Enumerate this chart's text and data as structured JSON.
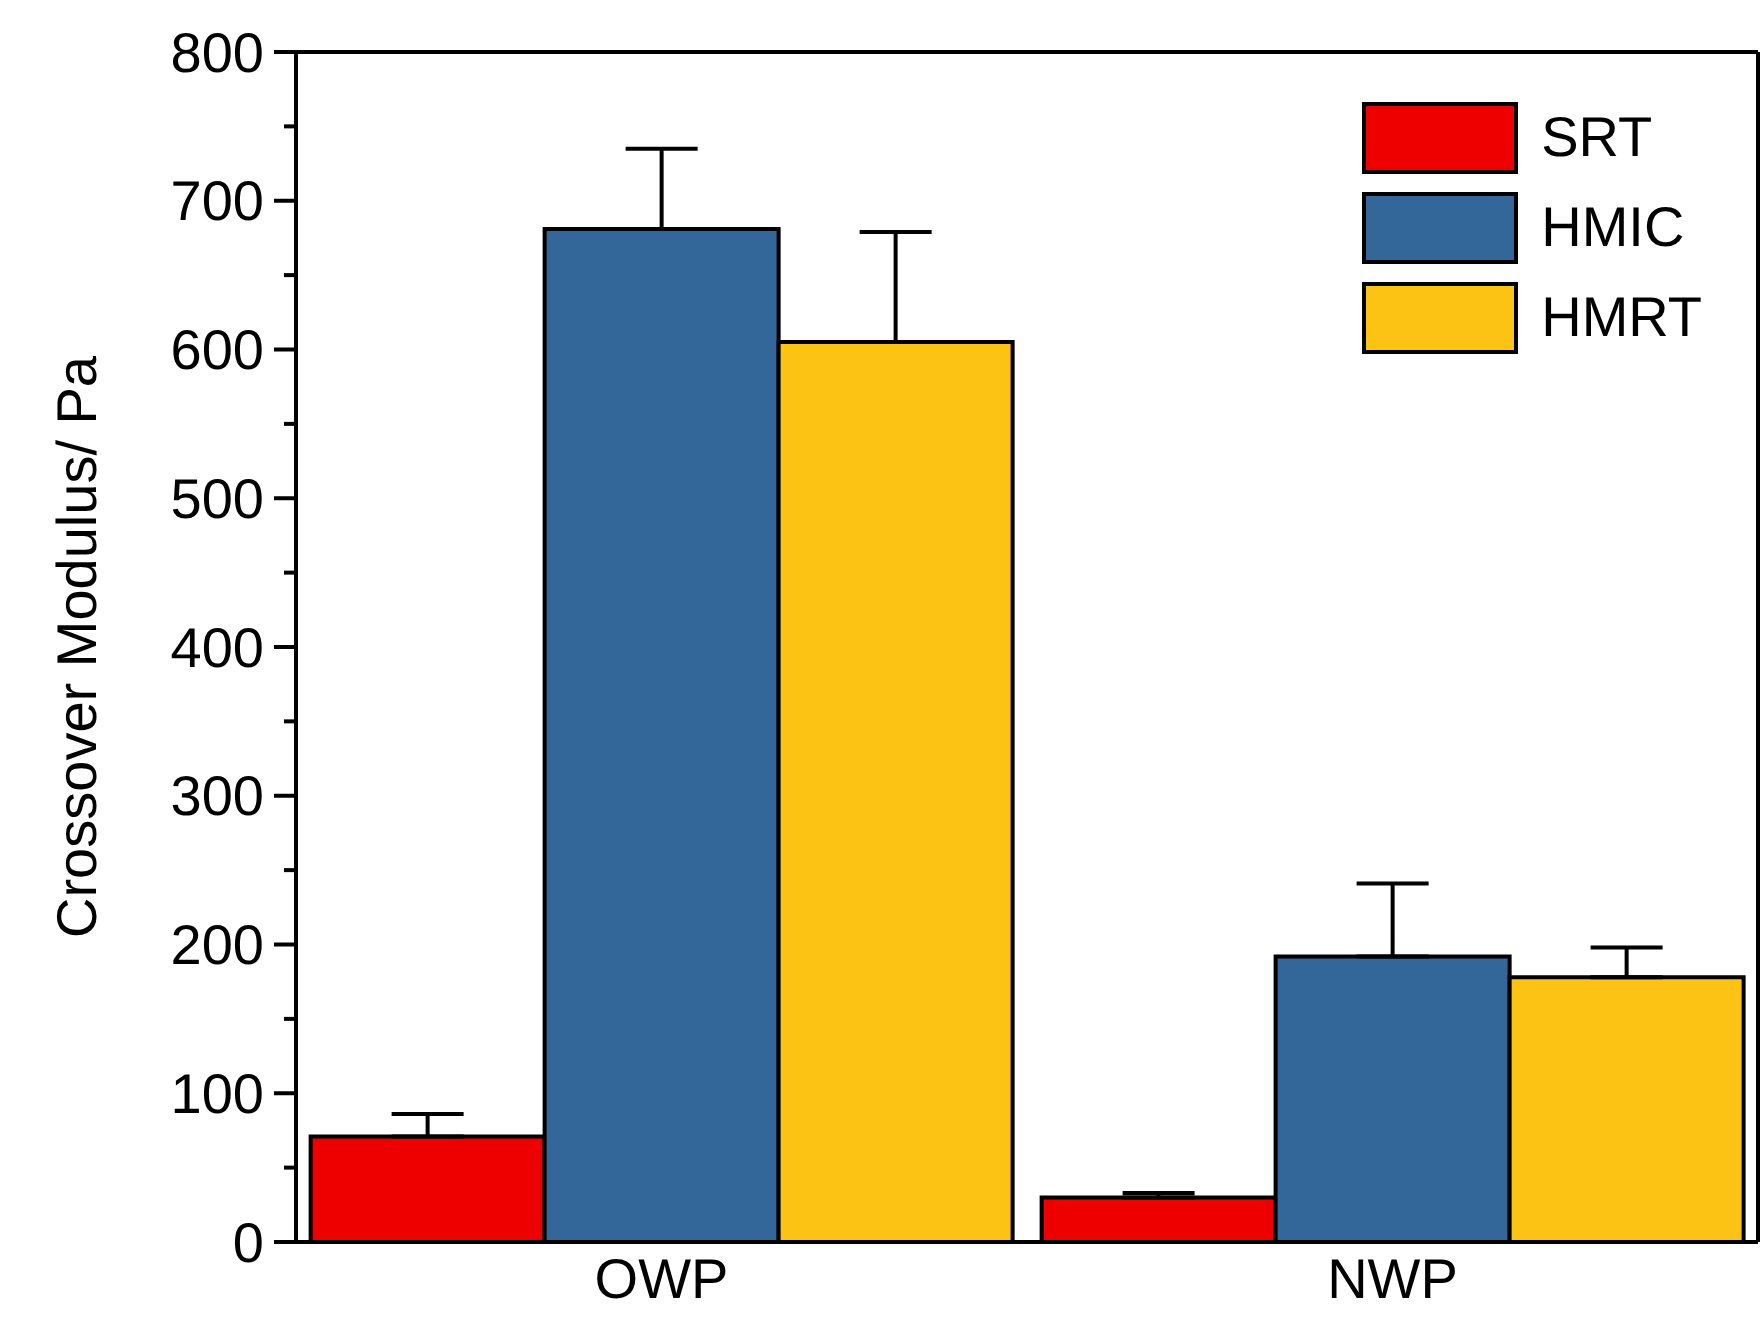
{
  "chart_data": {
    "type": "bar",
    "ylabel": "Crossover Modulus/ Pa",
    "categories": [
      "OWP",
      "NWP"
    ],
    "series": [
      {
        "name": "SRT",
        "color": "#ee0000",
        "values": [
          71,
          30
        ],
        "errors": [
          15,
          3
        ]
      },
      {
        "name": "HMIC",
        "color": "#336699",
        "values": [
          681,
          192
        ],
        "errors": [
          54,
          49
        ]
      },
      {
        "name": "HMRT",
        "color": "#fdc314",
        "values": [
          605,
          178
        ],
        "errors": [
          74,
          20
        ]
      }
    ],
    "ylim": [
      0,
      800
    ],
    "yticks": [
      0,
      {
        "value": 50,
        "label": null
      },
      100,
      {
        "value": 150,
        "label": null
      },
      200,
      {
        "value": 250,
        "label": null
      },
      300,
      {
        "value": 350,
        "label": null
      },
      400,
      {
        "value": 450,
        "label": null
      },
      500,
      {
        "value": 550,
        "label": null
      },
      600,
      {
        "value": 650,
        "label": null
      },
      700,
      {
        "value": 750,
        "label": null
      },
      800
    ],
    "grid": false,
    "legend": "top right"
  }
}
